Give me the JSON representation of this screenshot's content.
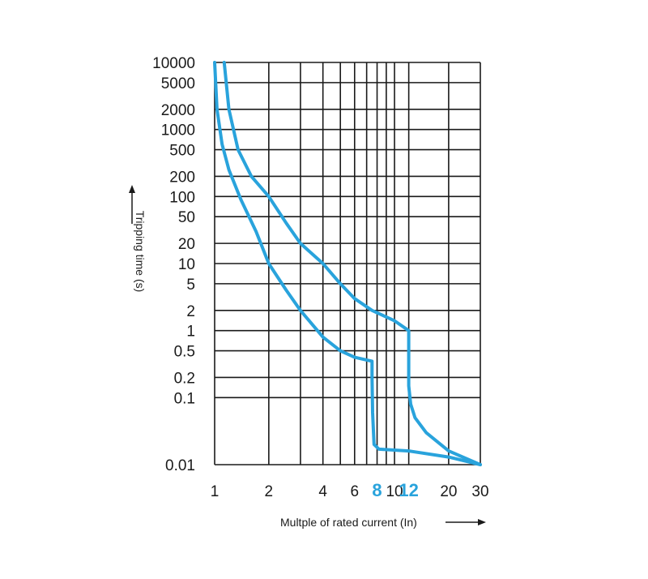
{
  "chart_data": {
    "type": "line",
    "xlabel": "Multple of rated current (In)",
    "ylabel": "Tripping time (s)",
    "x_scale": "log",
    "y_scale": "log",
    "xlim": [
      1,
      30
    ],
    "ylim": [
      0.01,
      10000
    ],
    "x_ticks": [
      1,
      2,
      4,
      6,
      8,
      10,
      12,
      20,
      30
    ],
    "x_tick_labels": [
      "1",
      "2",
      "4",
      "6",
      "8",
      "10",
      "12",
      "20",
      "30"
    ],
    "x_highlight_ticks": [
      "8",
      "12"
    ],
    "x_gridlines": [
      1,
      2,
      3,
      4,
      5,
      6,
      7,
      8,
      9,
      10,
      12,
      20,
      30
    ],
    "y_ticks": [
      0.01,
      0.1,
      0.2,
      0.5,
      1,
      2,
      5,
      10,
      20,
      50,
      100,
      200,
      500,
      1000,
      2000,
      5000,
      10000
    ],
    "y_tick_labels": [
      "0.01",
      "0.1",
      "0.2",
      "0.5",
      "1",
      "2",
      "5",
      "10",
      "20",
      "50",
      "100",
      "200",
      "500",
      "1000",
      "2000",
      "5000",
      "10000"
    ],
    "y_gridlines": [
      0.01,
      0.1,
      0.2,
      0.5,
      1,
      2,
      5,
      10,
      20,
      50,
      100,
      200,
      500,
      1000,
      2000,
      5000,
      10000
    ],
    "grid": true,
    "series": [
      {
        "points": [
          [
            1.0,
            10000
          ],
          [
            1.03,
            2000
          ],
          [
            1.1,
            600
          ],
          [
            1.2,
            250
          ],
          [
            1.4,
            90
          ],
          [
            1.7,
            30
          ],
          [
            2.0,
            10
          ],
          [
            2.5,
            4
          ],
          [
            3.0,
            2
          ],
          [
            4.0,
            0.8
          ],
          [
            5.0,
            0.5
          ],
          [
            6.0,
            0.4
          ],
          [
            7.5,
            0.35
          ],
          [
            7.5,
            0.2
          ],
          [
            7.55,
            0.06
          ],
          [
            7.7,
            0.02
          ],
          [
            8.2,
            0.017
          ],
          [
            12,
            0.016
          ],
          [
            20,
            0.013
          ],
          [
            30,
            0.01
          ]
        ]
      },
      {
        "points": [
          [
            1.13,
            10000
          ],
          [
            1.2,
            2000
          ],
          [
            1.35,
            500
          ],
          [
            1.6,
            200
          ],
          [
            2.0,
            100
          ],
          [
            2.5,
            40
          ],
          [
            3.0,
            20
          ],
          [
            4.0,
            10
          ],
          [
            5.0,
            5
          ],
          [
            6.0,
            3
          ],
          [
            7.5,
            2
          ],
          [
            10,
            1.4
          ],
          [
            12,
            1
          ],
          [
            12,
            0.5
          ],
          [
            12,
            0.15
          ],
          [
            12.3,
            0.08
          ],
          [
            13,
            0.05
          ],
          [
            15,
            0.03
          ],
          [
            20,
            0.016
          ],
          [
            30,
            0.01
          ]
        ]
      }
    ],
    "colors": {
      "curve": "#29a3dc",
      "highlight_tick": "#29a3dc",
      "grid": "#1a1a1a",
      "text": "#1a1a1a"
    }
  }
}
